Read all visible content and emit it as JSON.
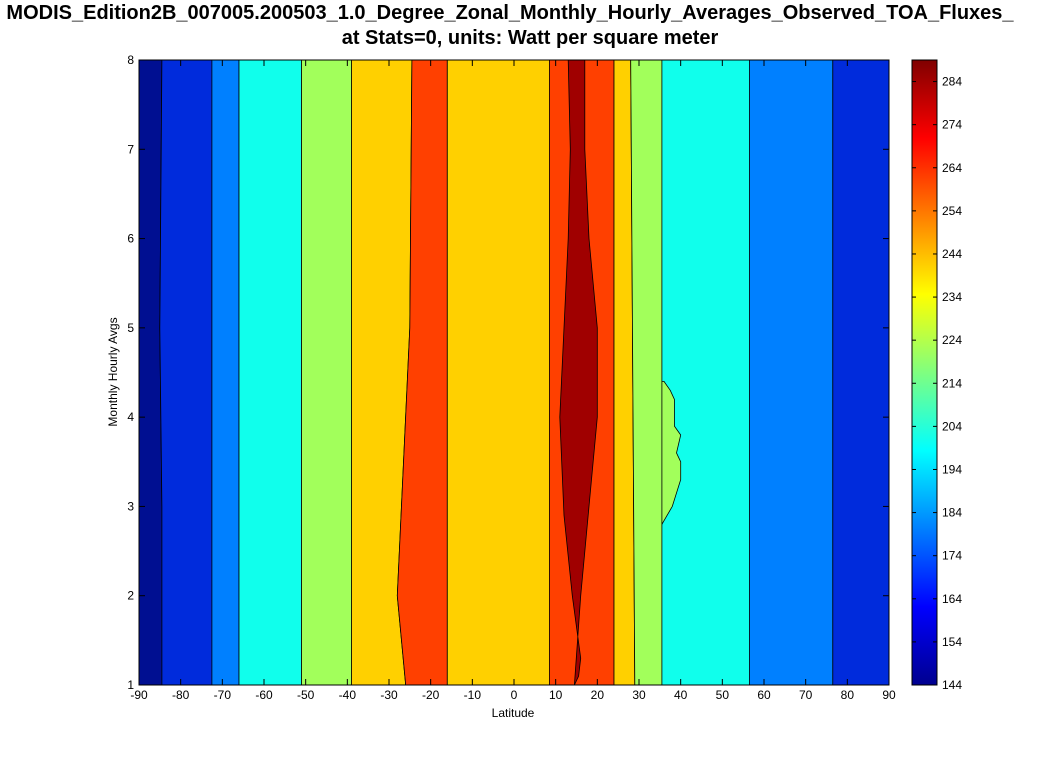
{
  "chart_data": {
    "type": "contour",
    "title_line1": "MODIS_Edition2B_007005.200503_1.0_Degree_Zonal_Monthly_Hourly_Averages_Observed_TOA_Fluxes_",
    "title_line2": "at Stats=0, units: Watt per square meter",
    "xlabel": "Latitude",
    "ylabel": "Monthly Hourly Avgs",
    "xlim": [
      -90,
      90
    ],
    "ylim": [
      1,
      8
    ],
    "xticks": [
      "-90",
      "-80",
      "-70",
      "-60",
      "-50",
      "-40",
      "-30",
      "-20",
      "-10",
      "0",
      "10",
      "20",
      "30",
      "40",
      "50",
      "60",
      "70",
      "80",
      "90"
    ],
    "yticks": [
      "1",
      "2",
      "3",
      "4",
      "5",
      "6",
      "7",
      "8"
    ],
    "colorbar": {
      "range": [
        144,
        289
      ],
      "ticks": [
        "144",
        "154",
        "164",
        "174",
        "184",
        "194",
        "204",
        "214",
        "224",
        "234",
        "244",
        "254",
        "264",
        "274",
        "284"
      ],
      "colormap": "jet"
    },
    "bands": [
      {
        "level": 145,
        "color": "#000f91",
        "left": [
          [
            -90,
            1
          ],
          [
            -90,
            8
          ]
        ],
        "right": [
          [
            -84.5,
            1
          ],
          [
            -84.5,
            3
          ],
          [
            -85,
            5
          ],
          [
            -84.5,
            8
          ]
        ]
      },
      {
        "level": 160,
        "color": "#002bdc",
        "left": [
          [
            -84.5,
            1
          ],
          [
            -84.5,
            3
          ],
          [
            -85,
            5
          ],
          [
            -84.5,
            8
          ]
        ],
        "right": [
          [
            -72.5,
            1
          ],
          [
            -72.5,
            8
          ]
        ]
      },
      {
        "level": 180,
        "color": "#0080ff",
        "left": [
          [
            -72.5,
            1
          ],
          [
            -72.5,
            8
          ]
        ],
        "right": [
          [
            -66,
            1
          ],
          [
            -66,
            8
          ]
        ]
      },
      {
        "level": 195,
        "color": "#10ffec",
        "left": [
          [
            -66,
            1
          ],
          [
            -66,
            8
          ]
        ],
        "right": [
          [
            -51,
            1
          ],
          [
            -51,
            8
          ]
        ]
      },
      {
        "level": 214,
        "color": "#a2ff5b",
        "left": [
          [
            -51,
            1
          ],
          [
            -51,
            8
          ]
        ],
        "right": [
          [
            -39,
            1
          ],
          [
            -39,
            8
          ]
        ]
      },
      {
        "level": 238,
        "color": "#ffd000",
        "left": [
          [
            -39,
            1
          ],
          [
            -39,
            8
          ]
        ],
        "right": [
          [
            -26,
            1
          ],
          [
            -28,
            2
          ],
          [
            -25,
            5
          ],
          [
            -24.5,
            8
          ]
        ]
      },
      {
        "level": 257,
        "color": "#ff4000",
        "left": [
          [
            -26,
            1
          ],
          [
            -28,
            2
          ],
          [
            -25,
            5
          ],
          [
            -24.5,
            8
          ]
        ],
        "right": [
          [
            -16,
            1
          ],
          [
            -16,
            8
          ]
        ]
      },
      {
        "level": 238,
        "color": "#ffd000",
        "left": [
          [
            -16,
            1
          ],
          [
            -16,
            8
          ]
        ],
        "right": [
          [
            8.5,
            1
          ],
          [
            8.5,
            8
          ]
        ]
      },
      {
        "level": 257,
        "color": "#ff4000",
        "left": [
          [
            8.5,
            1
          ],
          [
            8.5,
            8
          ]
        ],
        "right": [
          [
            24,
            1
          ],
          [
            24,
            8
          ]
        ]
      },
      {
        "level": 238,
        "color": "#ffd000",
        "left": [
          [
            24,
            1
          ],
          [
            24,
            8
          ]
        ],
        "right": [
          [
            29,
            1
          ],
          [
            28,
            8
          ]
        ]
      },
      {
        "level": 214,
        "color": "#a2ff5b",
        "left": [
          [
            29,
            1
          ],
          [
            28,
            8
          ]
        ],
        "right": [
          [
            35.5,
            1
          ],
          [
            35.5,
            8
          ]
        ]
      },
      {
        "level": 195,
        "color": "#10ffec",
        "left": [
          [
            35.5,
            1
          ],
          [
            35.5,
            8
          ]
        ],
        "right": [
          [
            56.5,
            1
          ],
          [
            56.5,
            8
          ]
        ]
      },
      {
        "level": 180,
        "color": "#0080ff",
        "left": [
          [
            56.5,
            1
          ],
          [
            56.5,
            8
          ]
        ],
        "right": [
          [
            76.5,
            1
          ],
          [
            76.5,
            8
          ]
        ]
      },
      {
        "level": 160,
        "color": "#002bdc",
        "left": [
          [
            76.5,
            1
          ],
          [
            76.5,
            8
          ]
        ],
        "right": [
          [
            90,
            1
          ],
          [
            90,
            8
          ]
        ]
      }
    ],
    "regions": [
      {
        "level": 286,
        "color": "#a00000",
        "outline": [
          [
            14.5,
            1
          ],
          [
            15.5,
            1.1
          ],
          [
            16,
            1.3
          ],
          [
            14,
            2
          ],
          [
            12,
            2.9
          ],
          [
            11,
            4
          ],
          [
            12,
            5
          ],
          [
            13,
            6
          ],
          [
            13.5,
            7
          ],
          [
            13,
            8
          ],
          [
            17,
            8
          ],
          [
            17,
            7
          ],
          [
            18,
            6
          ],
          [
            20,
            5
          ],
          [
            20,
            4
          ],
          [
            18,
            3
          ],
          [
            16,
            2
          ]
        ]
      },
      {
        "level": 214,
        "color": "#a2ff5b",
        "outline": [
          [
            35.5,
            2.8
          ],
          [
            38,
            3
          ],
          [
            40,
            3.3
          ],
          [
            40,
            3.5
          ],
          [
            39,
            3.6
          ],
          [
            40,
            3.8
          ],
          [
            38.5,
            3.9
          ],
          [
            38.5,
            4.2
          ],
          [
            37.5,
            4.3
          ],
          [
            36,
            4.4
          ],
          [
            35.5,
            4.4
          ]
        ]
      }
    ]
  }
}
